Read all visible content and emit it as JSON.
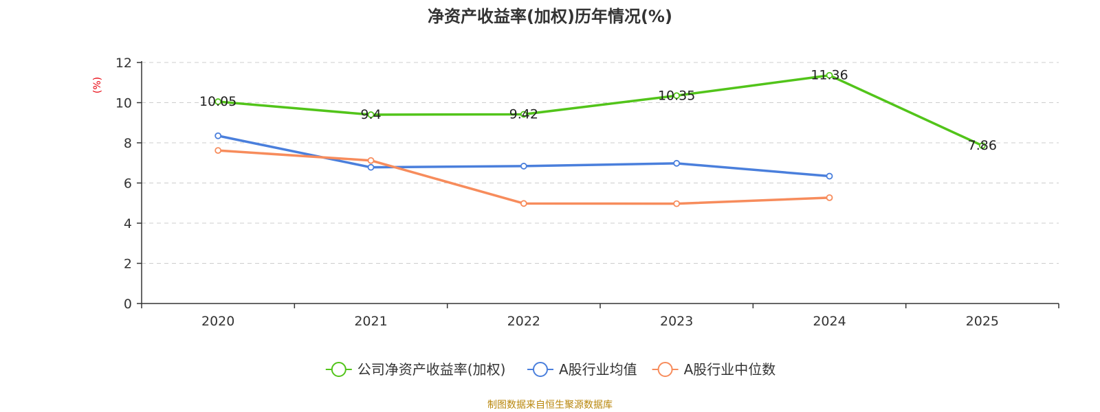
{
  "chart_data": {
    "type": "line",
    "title": "净资产收益率(加权)历年情况(%)",
    "ylabel": "(%)",
    "xlabel": "",
    "categories": [
      "2020",
      "2021",
      "2022",
      "2023",
      "2024",
      "2025"
    ],
    "ylim": [
      0,
      12
    ],
    "yticks": [
      0,
      2,
      4,
      6,
      8,
      10,
      12
    ],
    "grid": true,
    "legend_position": "bottom",
    "series": [
      {
        "name": "公司净资产收益率(加权)",
        "color": "#52c41a",
        "values": [
          10.05,
          9.4,
          9.42,
          10.35,
          11.36,
          7.86
        ],
        "labels": [
          "10.05",
          "9.4",
          "9.42",
          "10.35",
          "11.36",
          "7.86"
        ]
      },
      {
        "name": "A股行业均值",
        "color": "#4a7fdc",
        "values": [
          8.35,
          6.78,
          6.84,
          6.98,
          6.34,
          null
        ]
      },
      {
        "name": "A股行业中位数",
        "color": "#f78c5c",
        "values": [
          7.62,
          7.12,
          4.98,
          4.97,
          5.27,
          null
        ]
      }
    ],
    "source": "制图数据来自恒生聚源数据库"
  }
}
